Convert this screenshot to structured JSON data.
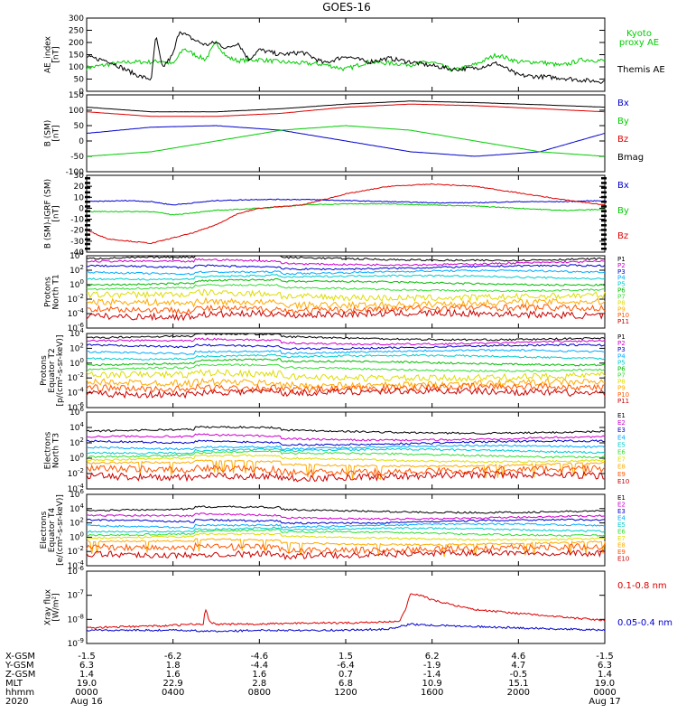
{
  "title": "GOES-16",
  "colors": {
    "black": "#000000",
    "blue": "#0000cc",
    "green": "#00cc00",
    "red": "#dd0000",
    "p": [
      "#000000",
      "#cc00cc",
      "#0000cc",
      "#00aaff",
      "#00cccc",
      "#00bb00",
      "#33dd33",
      "#dddd00",
      "#ffaa00",
      "#ff5500",
      "#cc0000"
    ],
    "e": [
      "#000000",
      "#cc00cc",
      "#0000cc",
      "#00aaff",
      "#00cccc",
      "#33dd33",
      "#dddd00",
      "#ffaa00",
      "#ff5500",
      "#cc0000"
    ]
  },
  "chart_data": [
    {
      "type": "line",
      "panel": "ae",
      "ylabel": [
        "AE_index",
        "[nT]"
      ],
      "ylim": [
        0,
        300
      ],
      "yticks": [
        "300",
        "250",
        "200",
        "150",
        "100",
        "50",
        "0"
      ],
      "series": [
        {
          "name": "Kyoto proxy AE",
          "label_lines": [
            "Kyoto",
            "proxy AE"
          ],
          "color": "green",
          "x": [
            0,
            1,
            2,
            2.5,
            3,
            3.5,
            4,
            4.5,
            5,
            5.5,
            6,
            6.5,
            7,
            8,
            9,
            10,
            11,
            12,
            13,
            14,
            15,
            16,
            17,
            18,
            19,
            20,
            21,
            22,
            23,
            24
          ],
          "values": [
            95,
            110,
            120,
            120,
            120,
            125,
            110,
            175,
            150,
            130,
            200,
            140,
            125,
            130,
            120,
            115,
            110,
            90,
            120,
            115,
            110,
            120,
            85,
            110,
            150,
            120,
            120,
            105,
            130,
            125
          ]
        },
        {
          "name": "Themis AE",
          "label_lines": [
            "Themis AE"
          ],
          "color": "black",
          "x": [
            0,
            1,
            2,
            2.5,
            3,
            3.2,
            3.5,
            4,
            4.3,
            4.6,
            5,
            5.5,
            6,
            6.5,
            7,
            7.5,
            8,
            9,
            10,
            11,
            12,
            13,
            14,
            15,
            16,
            17,
            18,
            19,
            20,
            21,
            22,
            23,
            24
          ],
          "values": [
            140,
            125,
            80,
            60,
            50,
            230,
            95,
            150,
            250,
            230,
            210,
            190,
            200,
            175,
            200,
            130,
            170,
            150,
            160,
            115,
            145,
            120,
            135,
            120,
            105,
            90,
            95,
            115,
            65,
            60,
            55,
            45,
            40
          ]
        }
      ]
    },
    {
      "type": "line",
      "panel": "b",
      "ylabel": [
        "B (SM)",
        "[nT]"
      ],
      "ylim": [
        -100,
        150
      ],
      "yticks": [
        "150",
        "100",
        "50",
        "0",
        "-50",
        "-100"
      ],
      "series": [
        {
          "name": "Bx",
          "color": "blue",
          "x": [
            0,
            3,
            6,
            9,
            12,
            15,
            18,
            21,
            24
          ],
          "values": [
            25,
            45,
            50,
            35,
            0,
            -35,
            -50,
            -35,
            25
          ]
        },
        {
          "name": "By",
          "color": "green",
          "x": [
            0,
            3,
            6,
            9,
            12,
            15,
            18,
            21,
            24
          ],
          "values": [
            -50,
            -35,
            0,
            35,
            50,
            35,
            0,
            -35,
            -50
          ]
        },
        {
          "name": "Bz",
          "color": "red",
          "x": [
            0,
            3,
            6,
            9,
            12,
            15,
            18,
            21,
            24
          ],
          "values": [
            95,
            80,
            80,
            90,
            110,
            120,
            115,
            105,
            95
          ]
        },
        {
          "name": "Bmag",
          "color": "black",
          "x": [
            0,
            3,
            6,
            9,
            12,
            15,
            18,
            21,
            24
          ],
          "values": [
            110,
            95,
            95,
            105,
            120,
            130,
            125,
            118,
            110
          ]
        }
      ]
    },
    {
      "type": "line",
      "panel": "db",
      "ylabel": [
        "B (SM)-IGRF (SM)",
        "[nT]"
      ],
      "ylim": [
        -40,
        30
      ],
      "yticks": [
        "30",
        "20",
        "10",
        "0",
        "-10",
        "-20",
        "-30",
        "-40"
      ],
      "series": [
        {
          "name": "Bx",
          "color": "blue",
          "x": [
            0,
            2,
            3,
            4,
            6,
            8,
            10,
            12,
            14,
            16,
            18,
            20,
            22,
            24
          ],
          "values": [
            6,
            7,
            6,
            3,
            7,
            8,
            8,
            7,
            6,
            5,
            5,
            6,
            6,
            7
          ]
        },
        {
          "name": "By",
          "color": "green",
          "x": [
            0,
            2,
            3,
            4,
            6,
            8,
            10,
            12,
            14,
            16,
            18,
            20,
            22,
            24
          ],
          "values": [
            -3,
            -3,
            -3,
            -6,
            -2,
            0,
            3,
            4,
            4,
            3,
            2,
            0,
            -2,
            -1
          ]
        },
        {
          "name": "Bz",
          "color": "red",
          "x": [
            0,
            1,
            2,
            3,
            4,
            5,
            6,
            7,
            8,
            10,
            12,
            14,
            16,
            18,
            20,
            22,
            24
          ],
          "values": [
            -20,
            -28,
            -30,
            -32,
            -27,
            -22,
            -15,
            -5,
            0,
            3,
            13,
            20,
            22,
            20,
            14,
            8,
            3
          ]
        }
      ]
    },
    {
      "type": "line",
      "panel": "p1",
      "ylabel": [
        "Protons",
        "North T1"
      ],
      "log": true,
      "ylim": [
        -6,
        4
      ],
      "yticks": [
        "10^4",
        "10^2",
        "10^0",
        "10^-2",
        "10^-4",
        "10^-6"
      ],
      "series_names": [
        "P1",
        "P2",
        "P3",
        "P4",
        "P5",
        "P6",
        "P7",
        "P8",
        "P9",
        "P10",
        "P11"
      ],
      "levels": [
        3.6,
        3.0,
        2.4,
        1.7,
        1.0,
        0.2,
        -0.6,
        -1.6,
        -2.6,
        -3.4,
        -4.2
      ]
    },
    {
      "type": "line",
      "panel": "p2",
      "ylabel": [
        "Protons",
        "Equator T2",
        "[p/(cm²-s-sr-keV)]"
      ],
      "log": true,
      "ylim": [
        -6,
        4
      ],
      "yticks": [
        "10^4",
        "10^2",
        "10^0",
        "10^-2",
        "10^-4",
        "10^-6"
      ],
      "series_names": [
        "P1",
        "P2",
        "P3",
        "P4",
        "P5",
        "P6",
        "P7",
        "P8",
        "P9",
        "P10",
        "P11"
      ],
      "levels": [
        3.4,
        2.8,
        2.2,
        1.5,
        0.8,
        0.0,
        -0.8,
        -1.8,
        -2.8,
        -3.4,
        -4.0
      ]
    },
    {
      "type": "line",
      "panel": "e1",
      "ylabel": [
        "Electrons",
        "North T3"
      ],
      "log": true,
      "ylim": [
        -4,
        6
      ],
      "yticks": [
        "10^6",
        "10^4",
        "10^2",
        "10^0",
        "10^-2",
        "10^-4"
      ],
      "series_names": [
        "E1",
        "E2",
        "E3",
        "E4",
        "E5",
        "E6",
        "E7",
        "E8",
        "E9",
        "E10"
      ],
      "levels": [
        3.5,
        2.6,
        2.0,
        1.4,
        0.9,
        0.4,
        -0.2,
        -0.8,
        -1.6,
        -2.4
      ]
    },
    {
      "type": "line",
      "panel": "e2",
      "ylabel": [
        "Electrons",
        "Equator T4",
        "[e/(cm²-s-sr-keV)]"
      ],
      "log": true,
      "ylim": [
        -4,
        6
      ],
      "yticks": [
        "10^6",
        "10^4",
        "10^2",
        "10^0",
        "10^-2",
        "10^-4"
      ],
      "series_names": [
        "E1",
        "E2",
        "E3",
        "E4",
        "E5",
        "E6",
        "E7",
        "E8",
        "E9",
        "E10"
      ],
      "levels": [
        3.7,
        2.8,
        2.2,
        1.6,
        1.0,
        0.5,
        -0.1,
        -0.8,
        -1.6,
        -2.4
      ]
    },
    {
      "type": "line",
      "panel": "xray",
      "ylabel": [
        "Xray flux",
        "[W/m²]"
      ],
      "log": true,
      "ylim": [
        -9,
        -6
      ],
      "yticks": [
        "10^-6",
        "10^-7",
        "10^-8",
        "10^-9"
      ],
      "series": [
        {
          "name": "0.1-0.8 nm",
          "color": "red",
          "x": [
            0,
            2,
            4,
            5,
            5.4,
            5.5,
            5.7,
            6,
            8,
            10,
            12,
            14,
            14.5,
            14.8,
            15,
            15.5,
            16,
            17,
            18,
            20,
            22,
            24
          ],
          "values": [
            -8.35,
            -8.3,
            -8.25,
            -8.2,
            -8.2,
            -7.55,
            -8.1,
            -8.2,
            -8.2,
            -8.15,
            -8.15,
            -8.1,
            -8.1,
            -7.5,
            -6.95,
            -7.0,
            -7.2,
            -7.4,
            -7.6,
            -7.75,
            -7.9,
            -8.05
          ]
        },
        {
          "name": "0.05-0.4 nm",
          "color": "blue",
          "x": [
            0,
            2,
            4,
            6,
            8,
            10,
            12,
            14,
            15,
            16,
            18,
            20,
            22,
            24
          ],
          "values": [
            -8.45,
            -8.45,
            -8.45,
            -8.5,
            -8.45,
            -8.45,
            -8.45,
            -8.4,
            -8.2,
            -8.25,
            -8.3,
            -8.35,
            -8.4,
            -8.45
          ]
        }
      ]
    }
  ],
  "xaxis": {
    "rows": [
      {
        "label": "X-GSM",
        "values": [
          "-1.5",
          "-6.2",
          "-4.6",
          "1.5",
          "6.2",
          "4.6",
          "-1.5"
        ]
      },
      {
        "label": "Y-GSM",
        "values": [
          "6.3",
          "1.8",
          "-4.4",
          "-6.4",
          "-1.9",
          "4.7",
          "6.3"
        ]
      },
      {
        "label": "Z-GSM",
        "values": [
          "1.4",
          "1.6",
          "1.6",
          "0.7",
          "-1.4",
          "-0.5",
          "1.4"
        ]
      },
      {
        "label": "MLT",
        "values": [
          "19.0",
          "22.9",
          "2.8",
          "6.8",
          "10.9",
          "15.1",
          "19.0"
        ]
      },
      {
        "label": "hhmm",
        "values": [
          "0000",
          "0400",
          "0800",
          "1200",
          "1600",
          "2000",
          "0000"
        ]
      },
      {
        "label": "2020",
        "values": [
          "Aug 16",
          "",
          "",
          "",
          "",
          "",
          "Aug 17"
        ]
      }
    ]
  }
}
